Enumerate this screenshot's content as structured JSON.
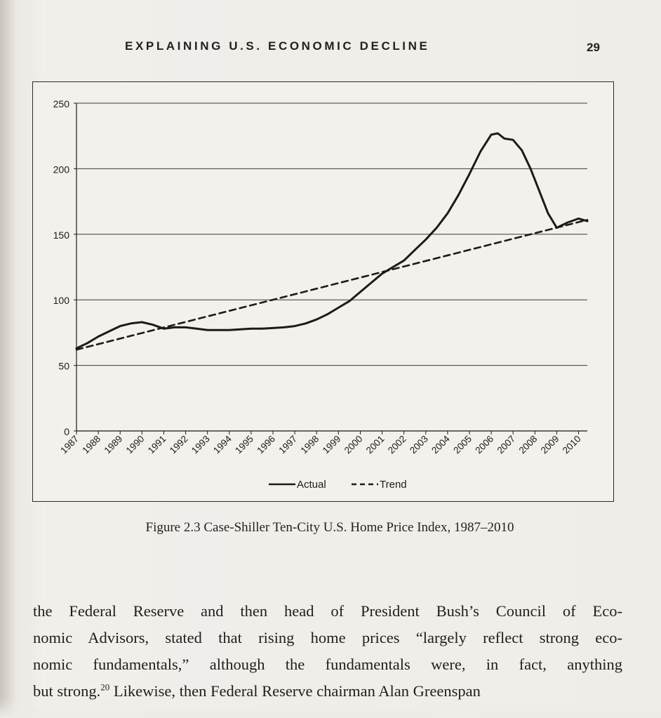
{
  "running_head": "EXPLAINING U.S. ECONOMIC DECLINE",
  "page_number": "29",
  "figure_caption": "Figure 2.3 Case-Shiller Ten-City U.S. Home Price Index, 1987–2010",
  "body_lines": [
    "the Federal Reserve and then head of President Bush’s Council of Eco-",
    "nomic Advisors, stated that rising home prices “largely reflect strong eco-",
    "nomic fundamentals,” although the fundamentals were, in fact, anything",
    "but strong.",
    "20",
    " Likewise, then Federal Reserve chairman Alan Greenspan"
  ],
  "chart_data": {
    "type": "line",
    "title": "",
    "xlabel": "",
    "ylabel": "",
    "categories": [
      "1987",
      "1988",
      "1989",
      "1990",
      "1991",
      "1992",
      "1993",
      "1994",
      "1995",
      "1996",
      "1997",
      "1998",
      "1999",
      "2000",
      "2001",
      "2002",
      "2003",
      "2004",
      "2005",
      "2006",
      "2007",
      "2008",
      "2009",
      "2010"
    ],
    "ylim": [
      0,
      250
    ],
    "yticks": [
      0,
      50,
      100,
      150,
      200,
      250
    ],
    "grid": "horizontal",
    "legend_position": "bottom-center",
    "series": [
      {
        "name": "Actual",
        "style": "solid",
        "x": [
          1987,
          1987.5,
          1988,
          1988.5,
          1989,
          1989.5,
          1990,
          1990.5,
          1991,
          1991.5,
          1992,
          1992.5,
          1993,
          1993.5,
          1994,
          1994.5,
          1995,
          1995.5,
          1996,
          1996.5,
          1997,
          1997.5,
          1998,
          1998.5,
          1999,
          1999.5,
          2000,
          2000.5,
          2001,
          2001.5,
          2002,
          2002.5,
          2003,
          2003.5,
          2004,
          2004.5,
          2005,
          2005.5,
          2006,
          2006.3,
          2006.6,
          2007,
          2007.4,
          2007.8,
          2008.2,
          2008.6,
          2009,
          2009.5,
          2010,
          2010.4
        ],
        "values": [
          63,
          67,
          72,
          76,
          80,
          82,
          83,
          81,
          78,
          79,
          79,
          78,
          77,
          77,
          77,
          77.5,
          78,
          78,
          78.5,
          79,
          80,
          82,
          85,
          89,
          94,
          99,
          106,
          113,
          120,
          125,
          130,
          138,
          146,
          155,
          166,
          180,
          196,
          213,
          226,
          227,
          223,
          222,
          214,
          200,
          183,
          166,
          155,
          159,
          162,
          160
        ]
      },
      {
        "name": "Trend",
        "style": "dashed",
        "x": [
          1987,
          2010.4
        ],
        "values": [
          62,
          161
        ]
      }
    ]
  },
  "colors": {
    "ink": "#1b1b1b",
    "paper": "#f1efea",
    "grid": "#3a3a3a"
  }
}
